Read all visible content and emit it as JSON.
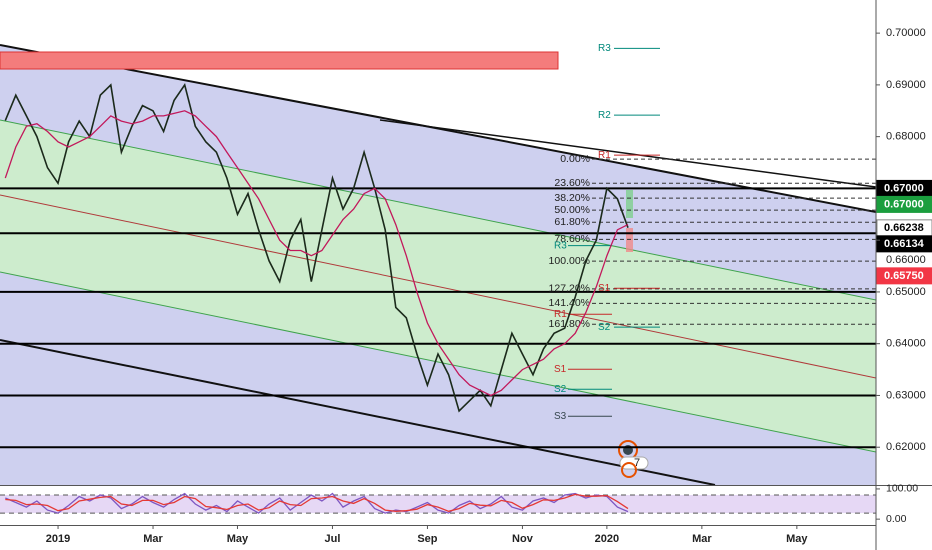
{
  "chart_data": [
    {
      "type": "line",
      "ylim": [
        0.6127,
        0.7064
      ],
      "yticks": [
        {
          "value": 0.62,
          "label": "0.62000"
        },
        {
          "value": 0.63,
          "label": "0.63000"
        },
        {
          "value": 0.64,
          "label": "0.64000"
        },
        {
          "value": 0.65,
          "label": "0.65000"
        },
        {
          "value": 0.66,
          "label": "0.66000"
        },
        {
          "value": 0.68,
          "label": "0.68000"
        },
        {
          "value": 0.69,
          "label": "0.69000"
        },
        {
          "value": 0.7,
          "label": "0.70000"
        }
      ],
      "categories": [
        null,
        null,
        null,
        null,
        null,
        "2019",
        null,
        null,
        null,
        null,
        null,
        null,
        null,
        null,
        "Mar",
        null,
        null,
        null,
        null,
        null,
        null,
        null,
        "May",
        null,
        null,
        null,
        null,
        null,
        null,
        null,
        null,
        "Jul",
        null,
        null,
        null,
        null,
        null,
        null,
        null,
        null,
        "Sep",
        null,
        null,
        null,
        null,
        null,
        null,
        null,
        null,
        "Nov",
        null,
        null,
        null,
        null,
        null,
        null,
        null,
        "2020",
        null,
        null,
        null,
        null,
        null,
        null,
        null,
        null,
        "Mar",
        null,
        null,
        null,
        null,
        null,
        null,
        null,
        null,
        "May",
        null,
        null,
        null,
        null,
        null,
        null,
        null
      ],
      "series": [
        {
          "color": "#1b2a1b",
          "values": [
            0.6831,
            0.688,
            0.684,
            0.68,
            0.674,
            0.671,
            0.679,
            0.683,
            0.68,
            0.688,
            0.69,
            0.677,
            0.682,
            0.686,
            0.685,
            0.681,
            0.687,
            0.69,
            0.682,
            0.679,
            0.677,
            0.672,
            0.665,
            0.669,
            0.662,
            0.656,
            0.652,
            0.66,
            0.664,
            0.652,
            0.662,
            0.672,
            0.666,
            0.67,
            0.677,
            0.67,
            0.662,
            0.647,
            0.645,
            0.638,
            0.632,
            0.638,
            0.634,
            0.627,
            0.629,
            0.631,
            0.628,
            0.635,
            0.642,
            0.638,
            0.634,
            0.639,
            0.642,
            0.643,
            0.649,
            0.656,
            0.66,
            0.67,
            0.668,
            0.6624,
            null,
            null,
            null,
            null,
            null,
            null,
            null,
            null,
            null,
            null,
            null,
            null,
            null,
            null,
            null,
            null,
            null,
            null,
            null,
            null,
            null,
            null,
            null
          ]
        },
        {
          "color": "#c2185b",
          "values": [
            0.672,
            0.678,
            0.682,
            0.6825,
            0.681,
            0.679,
            0.678,
            0.679,
            0.68,
            0.682,
            0.684,
            0.683,
            0.6825,
            0.683,
            0.684,
            0.684,
            0.6845,
            0.685,
            0.684,
            0.682,
            0.68,
            0.677,
            0.674,
            0.671,
            0.668,
            0.664,
            0.66,
            0.658,
            0.658,
            0.657,
            0.658,
            0.661,
            0.664,
            0.666,
            0.669,
            0.67,
            0.668,
            0.663,
            0.657,
            0.65,
            0.644,
            0.64,
            0.637,
            0.634,
            0.632,
            0.631,
            0.63,
            0.631,
            0.633,
            0.635,
            0.636,
            0.637,
            0.639,
            0.64,
            0.642,
            0.646,
            0.651,
            0.657,
            0.662,
            0.663,
            null,
            null,
            null,
            null,
            null,
            null,
            null,
            null,
            null,
            null,
            null,
            null,
            null,
            null,
            null,
            null,
            null,
            null,
            null,
            null,
            null,
            null,
            null
          ]
        }
      ],
      "hlines": [
        0.67,
        0.66134,
        0.65,
        0.64,
        0.63,
        0.62
      ],
      "fib": [
        {
          "value": 0.67565,
          "label": "0.00%"
        },
        {
          "value": 0.671,
          "label": "23.60%"
        },
        {
          "value": 0.66812,
          "label": "38.20%"
        },
        {
          "value": 0.6658,
          "label": "50.00%"
        },
        {
          "value": 0.66347,
          "label": "61.80%"
        },
        {
          "value": 0.66016,
          "label": "78.60%"
        },
        {
          "value": 0.65594,
          "label": "100.00%"
        },
        {
          "value": 0.65058,
          "label": "127.20%"
        },
        {
          "value": 0.64778,
          "label": "141.40%"
        },
        {
          "value": 0.64376,
          "label": "161.80%"
        }
      ],
      "pivots_next": [
        {
          "value": 0.69705,
          "label": "R3",
          "color": "#00897b"
        },
        {
          "value": 0.68415,
          "label": "R2",
          "color": "#00897b"
        },
        {
          "value": 0.67643,
          "label": "R1",
          "color": "#c62828"
        },
        {
          "value": 0.65072,
          "label": "S1",
          "color": "#c62828"
        },
        {
          "value": 0.64319,
          "label": "S2",
          "color": "#00897b"
        }
      ],
      "pivots_prev": [
        {
          "value": 0.65894,
          "label": "R3",
          "color": "#00897b"
        },
        {
          "value": 0.6457,
          "label": "R1",
          "color": "#c62828"
        },
        {
          "value": 0.63507,
          "label": "S1",
          "color": "#c62828"
        },
        {
          "value": 0.63121,
          "label": "S2",
          "color": "#00897b"
        },
        {
          "value": 0.62599,
          "label": "S3",
          "color": "#37474f"
        }
      ],
      "price_labels": [
        {
          "value": 0.67,
          "label": "0.67000",
          "color": "#000000"
        },
        {
          "value": 0.67,
          "label": "0.67000",
          "color": "#1b9e3e"
        },
        {
          "value": 0.66238,
          "label": "0.66238",
          "color": "#ffffff"
        },
        {
          "value": 0.66134,
          "label": "0.66134",
          "color": "#000000"
        },
        {
          "value": 0.6575,
          "label": "0.65750",
          "color": "#f23645"
        }
      ],
      "annotations": [
        "7"
      ]
    },
    {
      "type": "line",
      "ylim": [
        -19.4,
        109.7
      ],
      "yticks": [
        {
          "value": 0,
          "label": "0.00"
        },
        {
          "value": 100,
          "label": "100.00"
        }
      ],
      "bands": [
        80,
        20
      ],
      "series": [
        {
          "color": "#7e57c2",
          "values": [
            70,
            55,
            40,
            60,
            30,
            20,
            45,
            75,
            60,
            80,
            70,
            35,
            50,
            75,
            55,
            40,
            65,
            85,
            50,
            30,
            45,
            25,
            60,
            40,
            20,
            50,
            70,
            30,
            55,
            80,
            60,
            85,
            40,
            60,
            75,
            35,
            20,
            30,
            25,
            40,
            55,
            30,
            20,
            45,
            60,
            35,
            50,
            75,
            40,
            30,
            60,
            70,
            55,
            80,
            85,
            70,
            80,
            75,
            40,
            25
          ]
        },
        {
          "color": "#e53935",
          "values": [
            65,
            62,
            48,
            50,
            45,
            28,
            35,
            60,
            66,
            72,
            75,
            50,
            45,
            62,
            62,
            48,
            55,
            75,
            68,
            42,
            38,
            32,
            45,
            50,
            30,
            38,
            60,
            48,
            45,
            68,
            70,
            75,
            60,
            52,
            68,
            52,
            30,
            26,
            28,
            33,
            48,
            40,
            26,
            35,
            52,
            46,
            44,
            62,
            55,
            36,
            48,
            64,
            62,
            70,
            82,
            76,
            76,
            78,
            58,
            35
          ]
        }
      ]
    }
  ]
}
